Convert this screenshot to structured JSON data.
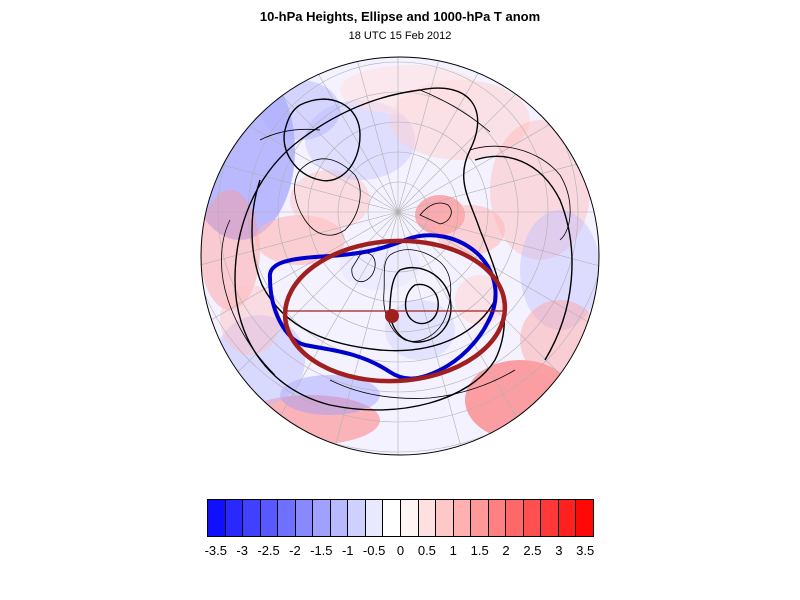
{
  "title": "10-hPa Heights, Ellipse and 1000-hPa T anom",
  "subtitle": "18 UTC 15 Feb 2012",
  "map": {
    "projection": "polar-stereographic-north",
    "graticule_color": "#b0b0b0",
    "coastline_color": "#000000",
    "height_contour_color": "#000000",
    "vortex_edge_color": "#0000cc",
    "ellipse_color": "#a02020"
  },
  "colorbar": {
    "colors": [
      "#1010ff",
      "#2828ff",
      "#4040ff",
      "#5858ff",
      "#7070ff",
      "#8888ff",
      "#a0a0ff",
      "#b8b8ff",
      "#d0d0ff",
      "#e8e8ff",
      "#ffffff",
      "#fff4f4",
      "#ffe0e0",
      "#ffc8c8",
      "#ffb0b0",
      "#ff9898",
      "#ff8080",
      "#ff6868",
      "#ff5050",
      "#ff3838",
      "#ff2020",
      "#ff0808"
    ],
    "labels": [
      "-3.5",
      "-3",
      "-2.5",
      "-2",
      "-1.5",
      "-1",
      "-0.5",
      "0",
      "0.5",
      "1",
      "1.5",
      "2",
      "2.5",
      "3",
      "3.5"
    ]
  }
}
